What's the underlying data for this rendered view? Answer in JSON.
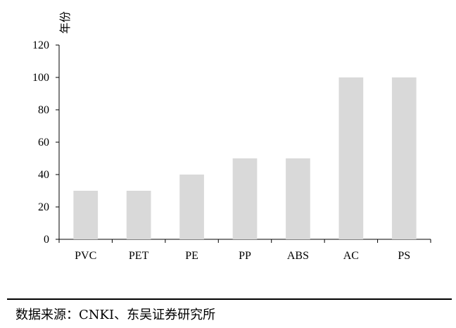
{
  "chart_data": {
    "type": "bar",
    "categories": [
      "PVC",
      "PET",
      "PE",
      "PP",
      "ABS",
      "AC",
      "PS"
    ],
    "values": [
      30,
      30,
      40,
      50,
      50,
      100,
      100
    ],
    "title": "",
    "xlabel": "",
    "ylabel": "年份",
    "ylim": [
      0,
      120
    ],
    "yticks": [
      0,
      20,
      40,
      60,
      80,
      100,
      120
    ],
    "grid": false,
    "legend": false,
    "colors": {
      "bar": "#d9d9d9",
      "axis": "#000000"
    }
  },
  "source": {
    "label": "数据来源：",
    "text": "CNKI、东吴证券研究所"
  }
}
